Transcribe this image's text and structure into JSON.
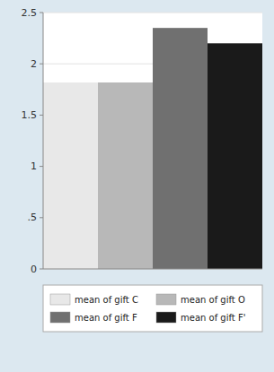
{
  "chart_data": {
    "type": "bar",
    "categories": [
      "mean of gift C",
      "mean of gift O",
      "mean of gift F",
      "mean of gift F'"
    ],
    "values": [
      1.818,
      1.818,
      2.35,
      2.2
    ],
    "colors": [
      "#e8e8e8",
      "#b8b8b8",
      "#707070",
      "#1a1a1a"
    ],
    "ylim": [
      0,
      2.5
    ],
    "yticks": [
      0,
      {
        "value": 0.5,
        "label": ".5"
      },
      1,
      1.5,
      2,
      2.5
    ],
    "grid": true,
    "legend": "bottom",
    "tick_labels": "y"
  }
}
